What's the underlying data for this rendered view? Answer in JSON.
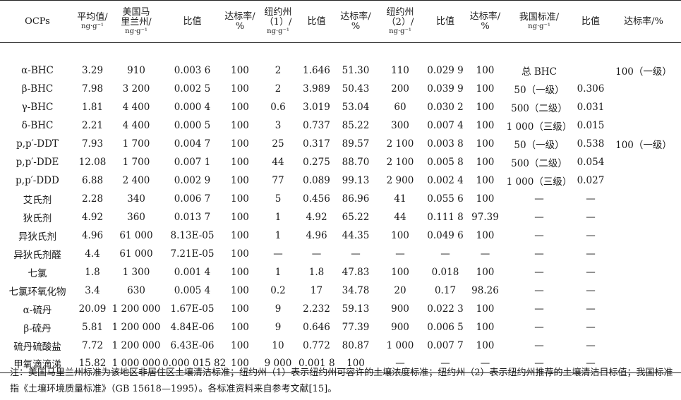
{
  "headers": {
    "c0": "OCPs",
    "c1": [
      "平均值/",
      "ng·g⁻¹"
    ],
    "c2": [
      "美国马",
      "里兰州/",
      "ng·g⁻¹"
    ],
    "c3": "比值",
    "c4": [
      "达标率/",
      "%"
    ],
    "c5": [
      "纽约州",
      "（1）/",
      "ng·g⁻¹"
    ],
    "c6": "比值",
    "c7": [
      "达标率/",
      "%"
    ],
    "c8": [
      "纽约州",
      "（2）/",
      "ng·g⁻¹"
    ],
    "c9": "比值",
    "c10": [
      "达标率/",
      "%"
    ],
    "c11": [
      "我国标准/",
      "ng·g⁻¹"
    ],
    "c12": "比值",
    "c13": "达标率/%"
  },
  "rows": [
    [
      "α-BHC",
      "3.29",
      "910",
      "0.003 6",
      "100",
      "2",
      "1.646",
      "51.30",
      "110",
      "0.029 9",
      "100",
      "总 BHC",
      "",
      "100（一级）"
    ],
    [
      "β-BHC",
      "7.98",
      "3 200",
      "0.002 5",
      "100",
      "2",
      "3.989",
      "50.43",
      "200",
      "0.039 9",
      "100",
      "50（一级）",
      "0.306",
      ""
    ],
    [
      "γ-BHC",
      "1.81",
      "4 400",
      "0.000 4",
      "100",
      "0.6",
      "3.019",
      "53.04",
      "60",
      "0.030 2",
      "100",
      "500（二级）",
      "0.031",
      ""
    ],
    [
      "δ-BHC",
      "2.21",
      "4 400",
      "0.000 5",
      "100",
      "3",
      "0.737",
      "85.22",
      "300",
      "0.007 4",
      "100",
      "1 000（三级）",
      "0.015",
      ""
    ],
    [
      "p,p′-DDT",
      "7.93",
      "1 700",
      "0.004 7",
      "100",
      "25",
      "0.317",
      "89.57",
      "2 100",
      "0.003 8",
      "100",
      "50（一级）",
      "0.538",
      "100（一级）"
    ],
    [
      "p,p′-DDE",
      "12.08",
      "1 700",
      "0.007 1",
      "100",
      "44",
      "0.275",
      "88.70",
      "2 100",
      "0.005 8",
      "100",
      "500（二级）",
      "0.054",
      ""
    ],
    [
      "p,p′-DDD",
      "6.88",
      "2 400",
      "0.002 9",
      "100",
      "77",
      "0.089",
      "99.13",
      "2 900",
      "0.002 4",
      "100",
      "1 000（三级）",
      "0.027",
      ""
    ],
    [
      "艾氏剂",
      "2.28",
      "340",
      "0.006 7",
      "100",
      "5",
      "0.456",
      "86.96",
      "41",
      "0.055 6",
      "100",
      "—",
      "—",
      ""
    ],
    [
      "狄氏剂",
      "4.92",
      "360",
      "0.013 7",
      "100",
      "1",
      "4.92",
      "65.22",
      "44",
      "0.111 8",
      "97.39",
      "—",
      "—",
      ""
    ],
    [
      "异狄氏剂",
      "4.96",
      "61 000",
      "8.13E-05",
      "100",
      "1",
      "4.96",
      "44.35",
      "100",
      "0.049 6",
      "100",
      "—",
      "—",
      ""
    ],
    [
      "异狄氏剂醛",
      "4.4",
      "61 000",
      "7.21E-05",
      "100",
      "—",
      "—",
      "—",
      "—",
      "—",
      "—",
      "—",
      "—",
      ""
    ],
    [
      "七氯",
      "1.8",
      "1 300",
      "0.001 4",
      "100",
      "1",
      "1.8",
      "47.83",
      "100",
      "0.018",
      "100",
      "—",
      "—",
      ""
    ],
    [
      "七氯环氧化物",
      "3.4",
      "630",
      "0.005 4",
      "100",
      "0.2",
      "17",
      "34.78",
      "20",
      "0.17",
      "98.26",
      "—",
      "—",
      ""
    ],
    [
      "α-硫丹",
      "20.09",
      "1 200 000",
      "1.67E-05",
      "100",
      "9",
      "2.232",
      "59.13",
      "900",
      "0.022 3",
      "100",
      "—",
      "—",
      ""
    ],
    [
      "β-硫丹",
      "5.81",
      "1 200 000",
      "4.84E-06",
      "100",
      "9",
      "0.646",
      "77.39",
      "900",
      "0.006 5",
      "100",
      "—",
      "—",
      ""
    ],
    [
      "硫丹硫酸盐",
      "7.72",
      "1 200 000",
      "6.43E-06",
      "100",
      "10",
      "0.772",
      "80.87",
      "1 000",
      "0.007 7",
      "100",
      "—",
      "—",
      ""
    ],
    [
      "甲氧滴滴涕",
      "15.82",
      "1 000 000",
      "0.000 015 82",
      "100",
      "9 000",
      "0.001 8",
      "100",
      "—",
      "—",
      "—",
      "—",
      "—",
      ""
    ]
  ],
  "note": "注：美国马里兰州标准为该地区非居住区土壤清洁标准；纽约州（1）表示纽约州可容许的土壤浓度标准；纽约州（2）表示纽约州推荐的土壤清洁目标值；我国标准指《土壤环境质量标准》（GB 15618—1995）。各标准资料来自参考文献[15]。"
}
